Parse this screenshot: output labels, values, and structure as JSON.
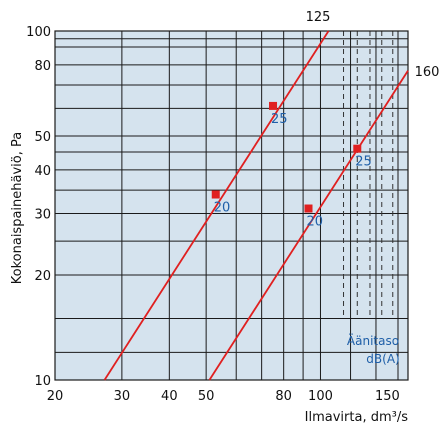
{
  "chart_data": {
    "type": "line",
    "xlabel": "Ilmavirta, dm³/s",
    "ylabel": "Kokonaispainehäviö, Pa",
    "x_scale": "log",
    "y_scale": "log",
    "xlim": [
      20,
      170
    ],
    "ylim": [
      10,
      100
    ],
    "grid": true,
    "x_ticks": [
      20,
      30,
      40,
      50,
      80,
      100,
      150
    ],
    "y_ticks": [
      10,
      20,
      30,
      40,
      50,
      80,
      100
    ],
    "series": [
      {
        "name": "125",
        "color": "#e02020",
        "points": [
          [
            27,
            10
          ],
          [
            105,
            100
          ]
        ],
        "markers": [
          {
            "x": 53,
            "y": 34,
            "label": "20"
          },
          {
            "x": 75,
            "y": 61,
            "label": "25"
          }
        ]
      },
      {
        "name": "160",
        "color": "#e02020",
        "points": [
          [
            51,
            10
          ],
          [
            170,
            77
          ]
        ],
        "markers": [
          {
            "x": 93,
            "y": 31,
            "label": "20"
          },
          {
            "x": 125,
            "y": 46,
            "label": "25"
          }
        ]
      }
    ],
    "sound_level_lines_x": [
      115,
      125,
      135,
      145,
      155
    ],
    "annotation": {
      "line1": "Äänitaso",
      "line2": "dB(A)"
    }
  },
  "colors": {
    "plot_bg": "#d5e3ee",
    "grid": "#1a1a1a",
    "curve": "#e02020",
    "label_blue": "#1f5fa8"
  }
}
